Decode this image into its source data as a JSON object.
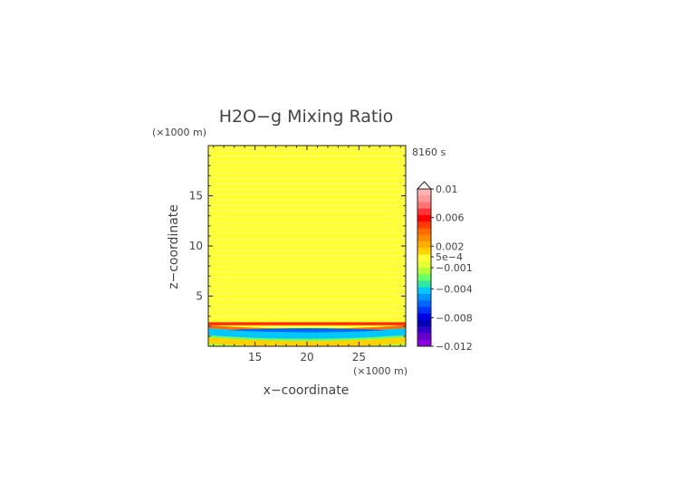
{
  "chart_data": {
    "type": "heatmap",
    "title": "H2O−g Mixing Ratio",
    "time_label": "8160 s",
    "xlabel": "x−coordinate",
    "ylabel": "z−coordinate",
    "x_unit": "(×1000 m)",
    "y_unit": "(×1000 m)",
    "xlim": [
      10.5,
      29.5
    ],
    "ylim": [
      0,
      20
    ],
    "xticks": [
      15,
      20,
      25
    ],
    "yticks": [
      5,
      10,
      15
    ],
    "colorbar": {
      "labels": [
        {
          "text": "0.01",
          "value": 0.01
        },
        {
          "text": "0.006",
          "value": 0.006
        },
        {
          "text": "0.002",
          "value": 0.002
        },
        {
          "text": "5e−4",
          "value": 0.0005
        },
        {
          "text": "−0.001",
          "value": -0.001
        },
        {
          "text": "−0.004",
          "value": -0.004
        },
        {
          "text": "−0.008",
          "value": -0.008
        },
        {
          "text": "−0.012",
          "value": -0.012
        }
      ],
      "min": -0.012,
      "max": 0.01,
      "extend_top": true,
      "colors_top_to_bottom": [
        "#ffb3b3",
        "#ff9999",
        "#ff7373",
        "#ff3333",
        "#ff0000",
        "#ff3b00",
        "#ff6a00",
        "#ff8c00",
        "#ffae00",
        "#ffd200",
        "#ffff33",
        "#e6ff33",
        "#b3ff33",
        "#66ff66",
        "#33e6a0",
        "#00c8ff",
        "#0096ff",
        "#0066ff",
        "#0033ff",
        "#0000e6",
        "#0000b3",
        "#3300cc",
        "#6600cc",
        "#8800dd"
      ]
    },
    "bands": [
      {
        "z0": 0,
        "z1": 0.3,
        "color": "#b3ff33"
      },
      {
        "z0": 0.3,
        "z1": 0.9,
        "color": "#ffd200"
      },
      {
        "z0": 0.9,
        "z1": 1.1,
        "color": "#66ff66"
      },
      {
        "z0": 1.1,
        "z1": 1.8,
        "color": "#00c8ff"
      },
      {
        "z0": 1.8,
        "z1": 2.1,
        "color": "#ff6a00"
      },
      {
        "z0": 2.1,
        "z1": 2.4,
        "color": "#ff2a00"
      },
      {
        "z0": 2.4,
        "z1": 20,
        "color": "#ffff33"
      }
    ],
    "background_color": "#ffff33"
  }
}
